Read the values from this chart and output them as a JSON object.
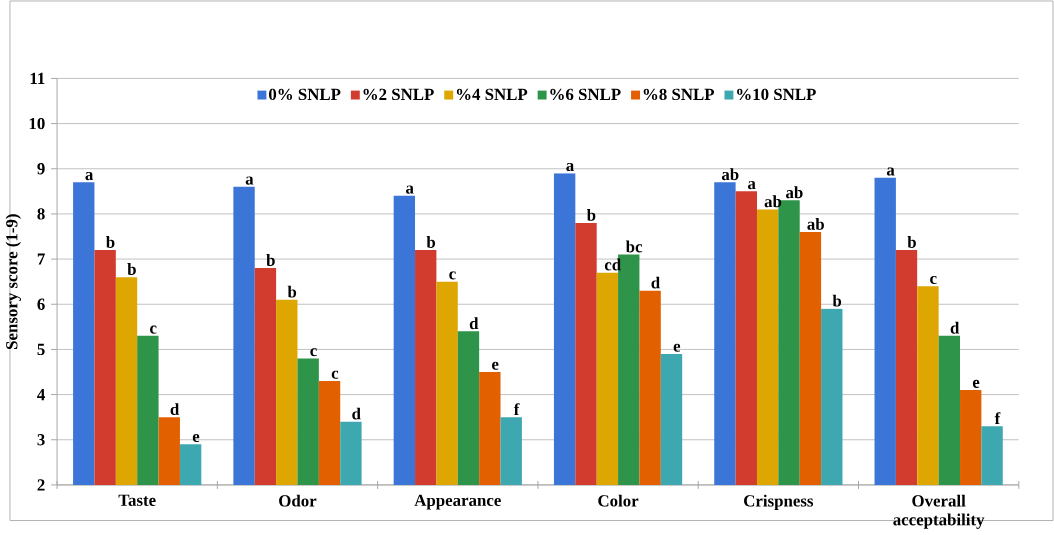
{
  "chart_data": {
    "type": "bar",
    "ylabel": "Sensory score (1-9)",
    "categories": [
      "Taste",
      "Odor",
      "Appearance",
      "Color",
      "Crispness",
      "Overall acceptability"
    ],
    "ylim": [
      2,
      11
    ],
    "yticks": [
      2,
      3,
      4,
      5,
      6,
      7,
      8,
      9,
      10,
      11
    ],
    "grid": "y",
    "legend": "top",
    "series": [
      {
        "name": "0% SNLP",
        "color": "#3c75d8",
        "values": [
          8.7,
          8.6,
          8.4,
          8.9,
          8.7,
          8.8
        ],
        "value_labels": [
          "a",
          "a",
          "a",
          "a",
          "ab",
          "a"
        ]
      },
      {
        "name": "%2 SNLP",
        "color": "#d23c2f",
        "values": [
          7.2,
          6.8,
          7.2,
          7.8,
          8.5,
          7.2
        ],
        "value_labels": [
          "b",
          "b",
          "b",
          "b",
          "a",
          "b"
        ]
      },
      {
        "name": "%4 SNLP",
        "color": "#dea600",
        "values": [
          6.6,
          6.1,
          6.5,
          6.7,
          8.1,
          6.4
        ],
        "value_labels": [
          "b",
          "b",
          "c",
          "cd",
          "ab",
          "c"
        ]
      },
      {
        "name": "%6 SNLP",
        "color": "#2e9449",
        "values": [
          5.3,
          4.8,
          5.4,
          7.1,
          8.3,
          5.3
        ],
        "value_labels": [
          "c",
          "c",
          "d",
          "bc",
          "ab",
          "d"
        ]
      },
      {
        "name": "%8 SNLP",
        "color": "#e36000",
        "values": [
          3.5,
          4.3,
          4.5,
          6.3,
          7.6,
          4.1
        ],
        "value_labels": [
          "d",
          "c",
          "e",
          "d",
          "ab",
          "e"
        ]
      },
      {
        "name": "%10 SNLP",
        "color": "#3da8b0",
        "values": [
          2.9,
          3.4,
          3.5,
          4.9,
          5.9,
          3.3
        ],
        "value_labels": [
          "e",
          "d",
          "f",
          "e",
          "b",
          "f"
        ]
      }
    ]
  }
}
